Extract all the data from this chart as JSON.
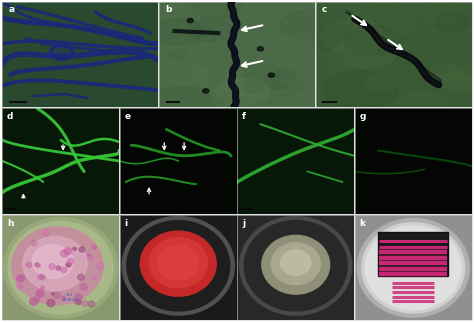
{
  "figure_width": 4.74,
  "figure_height": 3.22,
  "dpi": 100,
  "panel_a": {
    "bg_color": "#2a4a30",
    "label": "a",
    "hyphae_color": "#1a2878",
    "glow_color": "#3a5a3a"
  },
  "panel_b": {
    "bg_color": "#4a6a48",
    "label": "b",
    "hypha_color": "#080c18",
    "bg_light": "#6a8a60"
  },
  "panel_c": {
    "bg_color": "#3a5a35",
    "label": "c",
    "hypha_color": "#080c18",
    "bg_light": "#4a7040"
  },
  "panel_d": {
    "bg_color": "#081808",
    "label": "d",
    "hypha_color": "#38c838"
  },
  "panel_e": {
    "bg_color": "#030603",
    "label": "e",
    "hypha_color": "#28a028"
  },
  "panel_f": {
    "bg_color": "#081808",
    "label": "f",
    "hypha_color": "#30b030"
  },
  "panel_g": {
    "bg_color": "#030603",
    "label": "g",
    "hypha_color": "#158015"
  },
  "panel_h": {
    "bg_color": "#8a9870",
    "label": "h",
    "plate_rim": "#a0b080",
    "colony_outer": "#c890a8",
    "colony_inner": "#e0b0c8",
    "spots_color": "#b06090"
  },
  "panel_i": {
    "bg_color": "#1a1a1a",
    "label": "i",
    "plate_rim": "#606060",
    "plate_inner": "#282828",
    "colony_color": "#c82828",
    "colony_inner": "#e04040"
  },
  "panel_j": {
    "bg_color": "#282828",
    "label": "j",
    "plate_rim": "#505050",
    "plate_inner": "#303030",
    "colony_color": "#909080",
    "colony_inner": "#b8b8a0"
  },
  "panel_k": {
    "bg_color": "#909090",
    "label": "k",
    "plate_rim": "#b0b0b0",
    "plate_inner": "#c8c8c8",
    "dark_rect": "#101010",
    "streak_color": "#d02878"
  }
}
